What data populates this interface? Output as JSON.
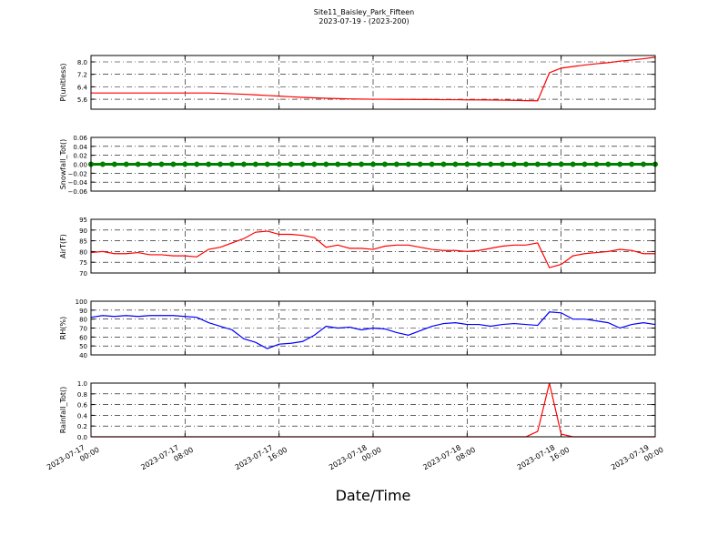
{
  "chart_data": [
    {
      "type": "line",
      "title": "Site11_Baisley_Park_Fifteen",
      "subtitle": "2023-07-19 - (2023-200)",
      "ylabel": "P(unitless)",
      "color": "#ff0000",
      "grid": true,
      "xlim": [
        "2023-07-17 00:00",
        "2023-07-19 00:00"
      ],
      "x": [
        "2023-07-17 00:00",
        "2023-07-17 01:00",
        "2023-07-17 02:00",
        "2023-07-17 03:00",
        "2023-07-17 04:00",
        "2023-07-17 05:00",
        "2023-07-17 06:00",
        "2023-07-17 07:00",
        "2023-07-17 08:00",
        "2023-07-17 09:00",
        "2023-07-17 10:00",
        "2023-07-17 11:00",
        "2023-07-17 12:00",
        "2023-07-17 13:00",
        "2023-07-17 14:00",
        "2023-07-17 15:00",
        "2023-07-17 16:00",
        "2023-07-17 17:00",
        "2023-07-17 18:00",
        "2023-07-17 19:00",
        "2023-07-17 20:00",
        "2023-07-17 21:00",
        "2023-07-17 22:00",
        "2023-07-17 23:00",
        "2023-07-18 00:00",
        "2023-07-18 01:00",
        "2023-07-18 02:00",
        "2023-07-18 03:00",
        "2023-07-18 04:00",
        "2023-07-18 05:00",
        "2023-07-18 06:00",
        "2023-07-18 07:00",
        "2023-07-18 08:00",
        "2023-07-18 09:00",
        "2023-07-18 10:00",
        "2023-07-18 11:00",
        "2023-07-18 12:00",
        "2023-07-18 13:00",
        "2023-07-18 14:00",
        "2023-07-18 15:00",
        "2023-07-18 16:00",
        "2023-07-18 17:00",
        "2023-07-18 18:00",
        "2023-07-18 19:00",
        "2023-07-18 20:00",
        "2023-07-18 21:00",
        "2023-07-18 22:00",
        "2023-07-18 23:00",
        "2023-07-19 00:00"
      ],
      "values": [
        6.0,
        6.0,
        6.0,
        6.0,
        6.0,
        6.0,
        6.0,
        6.0,
        6.0,
        6.0,
        6.0,
        5.98,
        5.95,
        5.92,
        5.88,
        5.84,
        5.8,
        5.76,
        5.72,
        5.69,
        5.66,
        5.64,
        5.62,
        5.61,
        5.6,
        5.6,
        5.59,
        5.59,
        5.58,
        5.58,
        5.57,
        5.57,
        5.56,
        5.56,
        5.55,
        5.54,
        5.53,
        5.51,
        5.5,
        7.3,
        7.6,
        7.7,
        7.8,
        7.88,
        7.95,
        8.05,
        8.12,
        8.2,
        8.3
      ],
      "ylim": [
        4.96,
        8.41
      ],
      "yticks": [
        5.6,
        6.4,
        7.2,
        {
          "value": 8,
          "label": "8.0"
        }
      ]
    },
    {
      "type": "line",
      "ylabel": "Snowfall_Tot()",
      "color": "#008000",
      "markers": true,
      "grid": true,
      "xlim": [
        "2023-07-17 00:00",
        "2023-07-19 00:00"
      ],
      "x": [
        "2023-07-17 00:00",
        "2023-07-17 01:00",
        "2023-07-17 02:00",
        "2023-07-17 03:00",
        "2023-07-17 04:00",
        "2023-07-17 05:00",
        "2023-07-17 06:00",
        "2023-07-17 07:00",
        "2023-07-17 08:00",
        "2023-07-17 09:00",
        "2023-07-17 10:00",
        "2023-07-17 11:00",
        "2023-07-17 12:00",
        "2023-07-17 13:00",
        "2023-07-17 14:00",
        "2023-07-17 15:00",
        "2023-07-17 16:00",
        "2023-07-17 17:00",
        "2023-07-17 18:00",
        "2023-07-17 19:00",
        "2023-07-17 20:00",
        "2023-07-17 21:00",
        "2023-07-17 22:00",
        "2023-07-17 23:00",
        "2023-07-18 00:00",
        "2023-07-18 01:00",
        "2023-07-18 02:00",
        "2023-07-18 03:00",
        "2023-07-18 04:00",
        "2023-07-18 05:00",
        "2023-07-18 06:00",
        "2023-07-18 07:00",
        "2023-07-18 08:00",
        "2023-07-18 09:00",
        "2023-07-18 10:00",
        "2023-07-18 11:00",
        "2023-07-18 12:00",
        "2023-07-18 13:00",
        "2023-07-18 14:00",
        "2023-07-18 15:00",
        "2023-07-18 16:00",
        "2023-07-18 17:00",
        "2023-07-18 18:00",
        "2023-07-18 19:00",
        "2023-07-18 20:00",
        "2023-07-18 21:00",
        "2023-07-18 22:00",
        "2023-07-18 23:00",
        "2023-07-19 00:00"
      ],
      "values": [
        0,
        0,
        0,
        0,
        0,
        0,
        0,
        0,
        0,
        0,
        0,
        0,
        0,
        0,
        0,
        0,
        0,
        0,
        0,
        0,
        0,
        0,
        0,
        0,
        0,
        0,
        0,
        0,
        0,
        0,
        0,
        0,
        0,
        0,
        0,
        0,
        0,
        0,
        0,
        0,
        0,
        0,
        0,
        0,
        0,
        0,
        0,
        0,
        0
      ],
      "ylim": [
        -0.06,
        0.06
      ],
      "yticks": [
        {
          "value": -0.06,
          "label": "−0.06"
        },
        {
          "value": -0.04,
          "label": "−0.04"
        },
        {
          "value": -0.02,
          "label": "−0.02"
        },
        {
          "value": 0,
          "label": "0.00"
        },
        0.02,
        0.04,
        0.06
      ]
    },
    {
      "type": "line",
      "ylabel": "AirT(F)",
      "color": "#ff0000",
      "grid": true,
      "xlim": [
        "2023-07-17 00:00",
        "2023-07-19 00:00"
      ],
      "x": [
        "2023-07-17 00:00",
        "2023-07-17 01:00",
        "2023-07-17 02:00",
        "2023-07-17 03:00",
        "2023-07-17 04:00",
        "2023-07-17 05:00",
        "2023-07-17 06:00",
        "2023-07-17 07:00",
        "2023-07-17 08:00",
        "2023-07-17 09:00",
        "2023-07-17 10:00",
        "2023-07-17 11:00",
        "2023-07-17 12:00",
        "2023-07-17 13:00",
        "2023-07-17 14:00",
        "2023-07-17 15:00",
        "2023-07-17 16:00",
        "2023-07-17 17:00",
        "2023-07-17 18:00",
        "2023-07-17 19:00",
        "2023-07-17 20:00",
        "2023-07-17 21:00",
        "2023-07-17 22:00",
        "2023-07-17 23:00",
        "2023-07-18 00:00",
        "2023-07-18 01:00",
        "2023-07-18 02:00",
        "2023-07-18 03:00",
        "2023-07-18 04:00",
        "2023-07-18 05:00",
        "2023-07-18 06:00",
        "2023-07-18 07:00",
        "2023-07-18 08:00",
        "2023-07-18 09:00",
        "2023-07-18 10:00",
        "2023-07-18 11:00",
        "2023-07-18 12:00",
        "2023-07-18 13:00",
        "2023-07-18 14:00",
        "2023-07-18 15:00",
        "2023-07-18 16:00",
        "2023-07-18 17:00",
        "2023-07-18 18:00",
        "2023-07-18 19:00",
        "2023-07-18 20:00",
        "2023-07-18 21:00",
        "2023-07-18 22:00",
        "2023-07-18 23:00",
        "2023-07-19 00:00"
      ],
      "values": [
        79.5,
        80,
        79,
        79,
        79.5,
        78.5,
        78.5,
        78,
        78,
        77.5,
        81,
        82,
        84,
        86,
        89,
        89.5,
        88,
        88,
        87.5,
        86.5,
        82,
        83,
        81.5,
        81.5,
        81,
        82.5,
        83,
        83,
        82,
        81,
        80.5,
        80.5,
        80,
        80.5,
        81.5,
        82.5,
        83,
        83,
        84,
        72.5,
        74,
        78,
        79,
        79.5,
        80,
        81,
        80.5,
        79,
        79
      ],
      "ylim": [
        70,
        95
      ],
      "yticks": [
        70,
        75,
        80,
        85,
        90,
        95
      ]
    },
    {
      "type": "line",
      "ylabel": "RH(%)",
      "color": "#0000ff",
      "grid": true,
      "xlim": [
        "2023-07-17 00:00",
        "2023-07-19 00:00"
      ],
      "x": [
        "2023-07-17 00:00",
        "2023-07-17 01:00",
        "2023-07-17 02:00",
        "2023-07-17 03:00",
        "2023-07-17 04:00",
        "2023-07-17 05:00",
        "2023-07-17 06:00",
        "2023-07-17 07:00",
        "2023-07-17 08:00",
        "2023-07-17 09:00",
        "2023-07-17 10:00",
        "2023-07-17 11:00",
        "2023-07-17 12:00",
        "2023-07-17 13:00",
        "2023-07-17 14:00",
        "2023-07-17 15:00",
        "2023-07-17 16:00",
        "2023-07-17 17:00",
        "2023-07-17 18:00",
        "2023-07-17 19:00",
        "2023-07-17 20:00",
        "2023-07-17 21:00",
        "2023-07-17 22:00",
        "2023-07-17 23:00",
        "2023-07-18 00:00",
        "2023-07-18 01:00",
        "2023-07-18 02:00",
        "2023-07-18 03:00",
        "2023-07-18 04:00",
        "2023-07-18 05:00",
        "2023-07-18 06:00",
        "2023-07-18 07:00",
        "2023-07-18 08:00",
        "2023-07-18 09:00",
        "2023-07-18 10:00",
        "2023-07-18 11:00",
        "2023-07-18 12:00",
        "2023-07-18 13:00",
        "2023-07-18 14:00",
        "2023-07-18 15:00",
        "2023-07-18 16:00",
        "2023-07-18 17:00",
        "2023-07-18 18:00",
        "2023-07-18 19:00",
        "2023-07-18 20:00",
        "2023-07-18 21:00",
        "2023-07-18 22:00",
        "2023-07-18 23:00",
        "2023-07-19 00:00"
      ],
      "values": [
        82,
        84,
        83,
        84,
        83,
        84,
        84,
        84,
        83,
        82,
        76,
        72,
        68,
        58,
        54,
        47,
        52,
        53,
        55,
        62,
        72,
        70,
        71,
        68,
        70,
        69,
        65,
        62,
        67,
        72,
        75,
        76,
        74,
        74,
        72,
        74,
        75,
        74,
        73,
        88,
        87,
        80,
        80,
        78,
        76,
        70,
        74,
        76,
        74
      ],
      "ylim": [
        40,
        100
      ],
      "yticks": [
        40,
        50,
        60,
        70,
        80,
        90,
        100
      ]
    },
    {
      "type": "line",
      "ylabel": "Rainfall_Tot()",
      "xlabel": "Date/Time",
      "color": "#ff0000",
      "grid": true,
      "xlim": [
        "2023-07-17 00:00",
        "2023-07-19 00:00"
      ],
      "x": [
        "2023-07-17 00:00",
        "2023-07-17 01:00",
        "2023-07-17 02:00",
        "2023-07-17 03:00",
        "2023-07-17 04:00",
        "2023-07-17 05:00",
        "2023-07-17 06:00",
        "2023-07-17 07:00",
        "2023-07-17 08:00",
        "2023-07-17 09:00",
        "2023-07-17 10:00",
        "2023-07-17 11:00",
        "2023-07-17 12:00",
        "2023-07-17 13:00",
        "2023-07-17 14:00",
        "2023-07-17 15:00",
        "2023-07-17 16:00",
        "2023-07-17 17:00",
        "2023-07-17 18:00",
        "2023-07-17 19:00",
        "2023-07-17 20:00",
        "2023-07-17 21:00",
        "2023-07-17 22:00",
        "2023-07-17 23:00",
        "2023-07-18 00:00",
        "2023-07-18 01:00",
        "2023-07-18 02:00",
        "2023-07-18 03:00",
        "2023-07-18 04:00",
        "2023-07-18 05:00",
        "2023-07-18 06:00",
        "2023-07-18 07:00",
        "2023-07-18 08:00",
        "2023-07-18 09:00",
        "2023-07-18 10:00",
        "2023-07-18 11:00",
        "2023-07-18 12:00",
        "2023-07-18 13:00",
        "2023-07-18 14:00",
        "2023-07-18 15:00",
        "2023-07-18 16:00",
        "2023-07-18 17:00",
        "2023-07-18 18:00",
        "2023-07-18 19:00",
        "2023-07-18 20:00",
        "2023-07-18 21:00",
        "2023-07-18 22:00",
        "2023-07-18 23:00",
        "2023-07-19 00:00"
      ],
      "values": [
        0,
        0,
        0,
        0,
        0,
        0,
        0,
        0,
        0,
        0,
        0,
        0,
        0,
        0,
        0,
        0,
        0,
        0,
        0,
        0,
        0,
        0,
        0,
        0,
        0,
        0,
        0,
        0,
        0,
        0,
        0,
        0,
        0,
        0,
        0,
        0,
        0,
        0,
        0.1,
        1.0,
        0.05,
        0,
        0,
        0,
        0,
        0,
        0,
        0,
        0
      ],
      "ylim": [
        0,
        1
      ],
      "yticks": [
        {
          "value": 0,
          "label": "0.0"
        },
        0.2,
        0.4,
        0.6,
        0.8,
        {
          "value": 1,
          "label": "1.0"
        }
      ],
      "xticks": [
        "2023-07-17 00:00",
        "2023-07-17 08:00",
        "2023-07-17 16:00",
        "2023-07-18 00:00",
        "2023-07-18 08:00",
        "2023-07-18 16:00",
        "2023-07-19 00:00"
      ]
    }
  ]
}
